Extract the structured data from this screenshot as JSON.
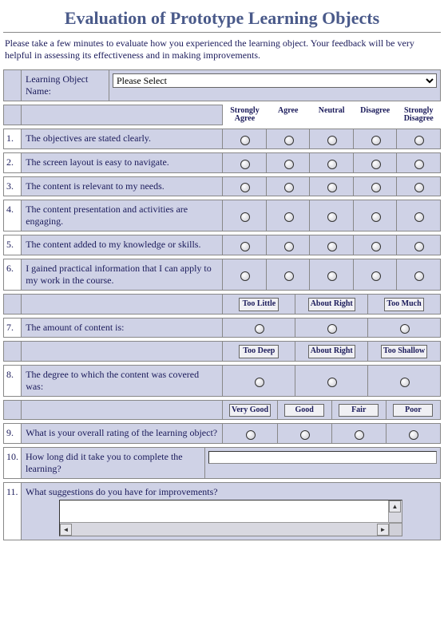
{
  "title": "Evaluation of Prototype Learning Objects",
  "intro": "Please take a few minutes to evaluate how you experienced the learning object. Your feedback will be very helpful in assessing its effectiveness and in making improvements.",
  "colors": {
    "heading": "#4a5a8a",
    "body_text": "#1a1a5a",
    "row_bg": "#cfd2e6",
    "border": "#888888",
    "pill_bg": "#f0f0f4"
  },
  "dropdown": {
    "label": "Learning Object Name:",
    "selected": "Please Select"
  },
  "scale5": [
    "Strongly Agree",
    "Agree",
    "Neutral",
    "Disagree",
    "Strongly Disagree"
  ],
  "scale5_lines": [
    [
      "Strongly",
      "Agree"
    ],
    [
      "Agree"
    ],
    [
      "Neutral"
    ],
    [
      "Disagree"
    ],
    [
      "Strongly",
      "Disagree"
    ]
  ],
  "likert_questions": [
    {
      "n": "1.",
      "text": "The objectives are stated clearly."
    },
    {
      "n": "2.",
      "text": "The screen layout is easy to navigate."
    },
    {
      "n": "3.",
      "text": "The content is relevant to my needs."
    },
    {
      "n": "4.",
      "text": "The content presentation and activities are engaging."
    },
    {
      "n": "5.",
      "text": "The content added to my knowledge or skills."
    },
    {
      "n": "6.",
      "text": "I gained practical information that I can apply to my work in the course."
    }
  ],
  "q7": {
    "n": "7.",
    "text": "The amount of content is:",
    "scale": [
      "Too Little",
      "About Right",
      "Too Much"
    ]
  },
  "q8": {
    "n": "8.",
    "text": "The degree to which the content was covered was:",
    "scale": [
      "Too Deep",
      "About Right",
      "Too Shallow"
    ]
  },
  "q9": {
    "n": "9.",
    "text": "What is your overall rating of the learning object?",
    "scale": [
      "Very Good",
      "Good",
      "Fair",
      "Poor"
    ]
  },
  "q10": {
    "n": "10.",
    "text": "How long did it take you to complete the learning?",
    "value": ""
  },
  "q11": {
    "n": "11.",
    "text": "What suggestions do you have for improvements?",
    "value": ""
  }
}
